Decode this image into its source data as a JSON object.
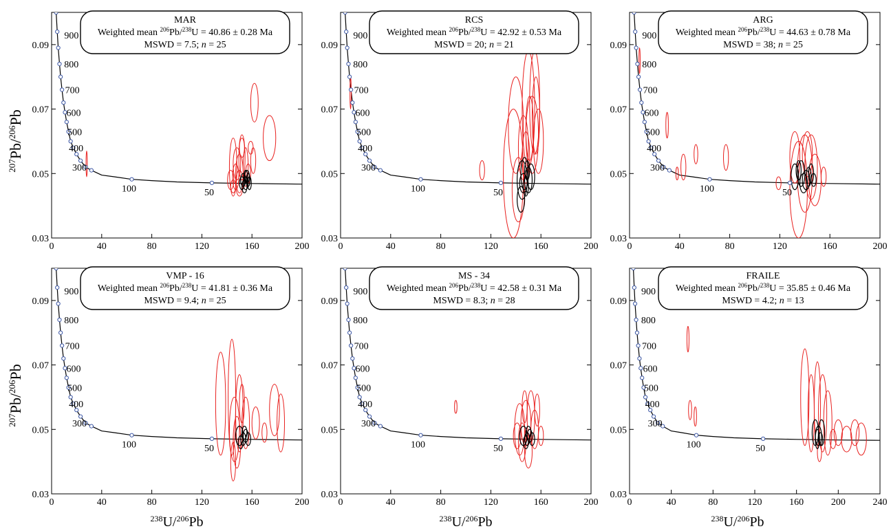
{
  "figure": {
    "y_axis_label": {
      "pre": "207",
      "mid": "Pb/",
      "sup2": "206",
      "post": "Pb"
    },
    "x_axis_label": {
      "pre": "238",
      "mid": "U/",
      "sup2": "206",
      "post": "Pb"
    }
  },
  "chart_data": [
    {
      "type": "scatter",
      "title": "MAR",
      "annotation": {
        "prefix": "Weighted mean ",
        "iso1": "206",
        "mid": "Pb/",
        "iso2": "238",
        "suffix": "U = 40.86 ± 0.28 Ma",
        "line2": "MSWD = 7.5; ",
        "n_label": "n",
        "n_value": " = 25"
      },
      "xlim": [
        0,
        200
      ],
      "ylim": [
        0.03,
        0.1
      ],
      "xticks": [
        0,
        40,
        80,
        120,
        160,
        200
      ],
      "yticks": [
        0.03,
        0.05,
        0.07,
        0.09
      ],
      "concordia_labels": [
        "900",
        "800",
        "700",
        "600",
        "500",
        "400",
        "300",
        "100",
        "50"
      ],
      "ellipse_colors": {
        "rejected": "#e8201e",
        "accepted": "#000000"
      },
      "rejected": [
        [
          145,
          0.052,
          3,
          0.009
        ],
        [
          150,
          0.05,
          3,
          0.006
        ],
        [
          152,
          0.055,
          2.5,
          0.007
        ],
        [
          147,
          0.049,
          2.5,
          0.004
        ],
        [
          155,
          0.052,
          2,
          0.006
        ],
        [
          148,
          0.053,
          3,
          0.005
        ],
        [
          143,
          0.048,
          2.5,
          0.003
        ],
        [
          150,
          0.047,
          3,
          0.004
        ],
        [
          162,
          0.072,
          3,
          0.006
        ],
        [
          174,
          0.061,
          5,
          0.007
        ],
        [
          159,
          0.058,
          2,
          0.002
        ],
        [
          161,
          0.054,
          2,
          0.004
        ],
        [
          145,
          0.046,
          2,
          0.002
        ],
        [
          152,
          0.058,
          2,
          0.003
        ],
        [
          28,
          0.053,
          0.5,
          0.004
        ],
        [
          157,
          0.05,
          2,
          0.003
        ]
      ],
      "accepted": [
        [
          153,
          0.048,
          2,
          0.002
        ],
        [
          155,
          0.047,
          2,
          0.002
        ],
        [
          157,
          0.048,
          1.5,
          0.002
        ],
        [
          154,
          0.046,
          2,
          0.002
        ],
        [
          156,
          0.049,
          2,
          0.002
        ],
        [
          158,
          0.047,
          1.5,
          0.002
        ],
        [
          152,
          0.047,
          2,
          0.002
        ],
        [
          155,
          0.049,
          1.5,
          0.002
        ]
      ]
    },
    {
      "type": "scatter",
      "title": "RCS",
      "annotation": {
        "prefix": "Weighted mean ",
        "iso1": "206",
        "mid": "Pb/",
        "iso2": "238",
        "suffix": "U = 42.92 ± 0.53 Ma",
        "line2": "MSWD = 20; ",
        "n_label": "n",
        "n_value": " = 21"
      },
      "xlim": [
        0,
        200
      ],
      "ylim": [
        0.03,
        0.1
      ],
      "xticks": [
        0,
        40,
        80,
        120,
        160,
        200
      ],
      "yticks": [
        0.03,
        0.05,
        0.07,
        0.09
      ],
      "concordia_labels": [
        "900",
        "800",
        "700",
        "600",
        "500",
        "400",
        "300",
        "100",
        "50"
      ],
      "ellipse_colors": {
        "rejected": "#e8201e",
        "accepted": "#000000"
      },
      "rejected": [
        [
          138,
          0.05,
          8,
          0.02
        ],
        [
          140,
          0.065,
          6,
          0.015
        ],
        [
          150,
          0.07,
          5,
          0.018
        ],
        [
          155,
          0.072,
          4,
          0.016
        ],
        [
          158,
          0.06,
          4,
          0.01
        ],
        [
          153,
          0.062,
          5,
          0.012
        ],
        [
          146,
          0.058,
          4,
          0.01
        ],
        [
          142,
          0.045,
          5,
          0.01
        ],
        [
          148,
          0.055,
          3,
          0.008
        ],
        [
          113,
          0.051,
          2,
          0.003
        ],
        [
          8,
          0.075,
          0.5,
          0.005
        ],
        [
          156,
          0.068,
          3,
          0.012
        ],
        [
          151,
          0.064,
          3,
          0.01
        ]
      ],
      "accepted": [
        [
          145,
          0.048,
          4,
          0.006
        ],
        [
          147,
          0.05,
          3,
          0.005
        ],
        [
          150,
          0.048,
          3,
          0.004
        ],
        [
          148,
          0.046,
          2,
          0.003
        ],
        [
          152,
          0.049,
          3,
          0.004
        ],
        [
          146,
          0.047,
          3,
          0.003
        ],
        [
          149,
          0.051,
          2,
          0.003
        ],
        [
          144,
          0.042,
          3,
          0.004
        ]
      ]
    },
    {
      "type": "scatter",
      "title": "ARG",
      "annotation": {
        "prefix": "Weighted mean ",
        "iso1": "206",
        "mid": "Pb/",
        "iso2": "238",
        "suffix": "U = 44.63 ± 0.78 Ma",
        "line2": "MSWD = 38; ",
        "n_label": "n",
        "n_value": " = 25"
      },
      "xlim": [
        0,
        200
      ],
      "ylim": [
        0.03,
        0.1
      ],
      "xticks": [
        0,
        40,
        80,
        120,
        160,
        200
      ],
      "yticks": [
        0.03,
        0.05,
        0.07,
        0.09
      ],
      "concordia_labels": [
        "900",
        "800",
        "700",
        "600",
        "500",
        "400",
        "300",
        "100",
        "50"
      ],
      "ellipse_colors": {
        "rejected": "#e8201e",
        "accepted": "#000000"
      },
      "rejected": [
        [
          135,
          0.045,
          7,
          0.015
        ],
        [
          140,
          0.05,
          6,
          0.012
        ],
        [
          145,
          0.052,
          5,
          0.01
        ],
        [
          148,
          0.048,
          5,
          0.008
        ],
        [
          132,
          0.055,
          4,
          0.008
        ],
        [
          142,
          0.056,
          4,
          0.007
        ],
        [
          30,
          0.065,
          1,
          0.004
        ],
        [
          43,
          0.052,
          2,
          0.004
        ],
        [
          53,
          0.056,
          1.5,
          0.003
        ],
        [
          77,
          0.055,
          2,
          0.004
        ],
        [
          38,
          0.05,
          1,
          0.002
        ],
        [
          119,
          0.047,
          2,
          0.002
        ],
        [
          155,
          0.049,
          2,
          0.003
        ],
        [
          8,
          0.085,
          0.5,
          0.004
        ]
      ],
      "accepted": [
        [
          132,
          0.049,
          3,
          0.004
        ],
        [
          137,
          0.05,
          3,
          0.004
        ],
        [
          141,
          0.048,
          3,
          0.003
        ],
        [
          145,
          0.05,
          2,
          0.003
        ],
        [
          139,
          0.047,
          3,
          0.003
        ],
        [
          143,
          0.049,
          2,
          0.003
        ],
        [
          147,
          0.048,
          2,
          0.002
        ],
        [
          135,
          0.051,
          2,
          0.003
        ]
      ]
    },
    {
      "type": "scatter",
      "title": "VMP - 16",
      "annotation": {
        "prefix": "Weighted mean ",
        "iso1": "206",
        "mid": "Pb/",
        "iso2": "238",
        "suffix": "U = 41.81 ± 0.36 Ma",
        "line2": "MSWD = 9.4; ",
        "n_label": "n",
        "n_value": " = 25"
      },
      "xlim": [
        0,
        200
      ],
      "ylim": [
        0.03,
        0.1
      ],
      "xticks": [
        0,
        40,
        80,
        120,
        160,
        200
      ],
      "yticks": [
        0.03,
        0.05,
        0.07,
        0.09
      ],
      "concordia_labels": [
        "900",
        "800",
        "700",
        "600",
        "500",
        "400",
        "300",
        "100",
        "50"
      ],
      "ellipse_colors": {
        "rejected": "#e8201e",
        "accepted": "#000000"
      },
      "rejected": [
        [
          135,
          0.058,
          4,
          0.016
        ],
        [
          144,
          0.06,
          3,
          0.018
        ],
        [
          150,
          0.055,
          3,
          0.012
        ],
        [
          146,
          0.05,
          4,
          0.01
        ],
        [
          155,
          0.052,
          3,
          0.008
        ],
        [
          148,
          0.046,
          3,
          0.008
        ],
        [
          145,
          0.04,
          2,
          0.006
        ],
        [
          178,
          0.056,
          4,
          0.008
        ],
        [
          183,
          0.052,
          3,
          0.009
        ],
        [
          163,
          0.052,
          3,
          0.005
        ],
        [
          170,
          0.049,
          2,
          0.003
        ],
        [
          152,
          0.058,
          2,
          0.006
        ]
      ],
      "accepted": [
        [
          150,
          0.048,
          3,
          0.003
        ],
        [
          153,
          0.047,
          2,
          0.002
        ],
        [
          155,
          0.048,
          2,
          0.002
        ],
        [
          151,
          0.046,
          2,
          0.002
        ],
        [
          157,
          0.047,
          2,
          0.002
        ],
        [
          154,
          0.049,
          2,
          0.002
        ]
      ]
    },
    {
      "type": "scatter",
      "title": "MS - 34",
      "annotation": {
        "prefix": "Weighted mean ",
        "iso1": "206",
        "mid": "Pb/",
        "iso2": "238",
        "suffix": "U = 42.58 ± 0.31 Ma",
        "line2": "MSWD = 8.3; ",
        "n_label": "n",
        "n_value": " = 28"
      },
      "xlim": [
        0,
        200
      ],
      "ylim": [
        0.03,
        0.1
      ],
      "xticks": [
        0,
        40,
        80,
        120,
        160,
        200
      ],
      "yticks": [
        0.03,
        0.05,
        0.07,
        0.09
      ],
      "concordia_labels": [
        "900",
        "800",
        "700",
        "600",
        "500",
        "400",
        "300",
        "100",
        "50"
      ],
      "ellipse_colors": {
        "rejected": "#e8201e",
        "accepted": "#000000"
      },
      "rejected": [
        [
          143,
          0.05,
          4,
          0.008
        ],
        [
          148,
          0.052,
          4,
          0.007
        ],
        [
          152,
          0.054,
          3,
          0.008
        ],
        [
          145,
          0.046,
          3,
          0.006
        ],
        [
          155,
          0.05,
          3,
          0.006
        ],
        [
          150,
          0.043,
          3,
          0.005
        ],
        [
          147,
          0.057,
          2,
          0.005
        ],
        [
          157,
          0.056,
          2,
          0.005
        ],
        [
          92,
          0.057,
          1,
          0.002
        ],
        [
          141,
          0.048,
          3,
          0.004
        ],
        [
          160,
          0.048,
          2,
          0.003
        ]
      ],
      "accepted": [
        [
          146,
          0.048,
          3,
          0.003
        ],
        [
          149,
          0.047,
          2,
          0.002
        ],
        [
          151,
          0.048,
          2,
          0.002
        ],
        [
          148,
          0.046,
          2,
          0.002
        ],
        [
          153,
          0.047,
          2,
          0.002
        ],
        [
          150,
          0.049,
          2,
          0.002
        ]
      ]
    },
    {
      "type": "scatter",
      "title": "FRAILE",
      "annotation": {
        "prefix": "Weighted mean ",
        "iso1": "206",
        "mid": "Pb/",
        "iso2": "238",
        "suffix": "U = 35.85 ± 0.46 Ma",
        "line2": "MSWD = 4.2; ",
        "n_label": "n",
        "n_value": " = 13"
      },
      "xlim": [
        0,
        240
      ],
      "ylim": [
        0.03,
        0.1
      ],
      "xticks": [
        0,
        40,
        80,
        120,
        160,
        200,
        240
      ],
      "yticks": [
        0.03,
        0.05,
        0.07,
        0.09
      ],
      "concordia_labels": [
        "900",
        "800",
        "700",
        "600",
        "500",
        "400",
        "300",
        "100",
        "50"
      ],
      "ellipse_colors": {
        "rejected": "#e8201e",
        "accepted": "#000000"
      },
      "rejected": [
        [
          168,
          0.06,
          4,
          0.015
        ],
        [
          174,
          0.055,
          3,
          0.012
        ],
        [
          180,
          0.058,
          3,
          0.013
        ],
        [
          185,
          0.055,
          4,
          0.012
        ],
        [
          190,
          0.052,
          4,
          0.01
        ],
        [
          200,
          0.049,
          4,
          0.004
        ],
        [
          208,
          0.047,
          5,
          0.004
        ],
        [
          222,
          0.047,
          5,
          0.005
        ],
        [
          216,
          0.049,
          4,
          0.004
        ],
        [
          195,
          0.047,
          3,
          0.003
        ],
        [
          56,
          0.078,
          1,
          0.004
        ],
        [
          58,
          0.056,
          1.5,
          0.003
        ],
        [
          63,
          0.054,
          1.2,
          0.003
        ],
        [
          182,
          0.043,
          2,
          0.003
        ]
      ],
      "accepted": [
        [
          178,
          0.049,
          3,
          0.004
        ],
        [
          181,
          0.048,
          3,
          0.003
        ],
        [
          184,
          0.049,
          3,
          0.004
        ],
        [
          180,
          0.047,
          2,
          0.003
        ],
        [
          183,
          0.047,
          2,
          0.002
        ]
      ]
    }
  ]
}
